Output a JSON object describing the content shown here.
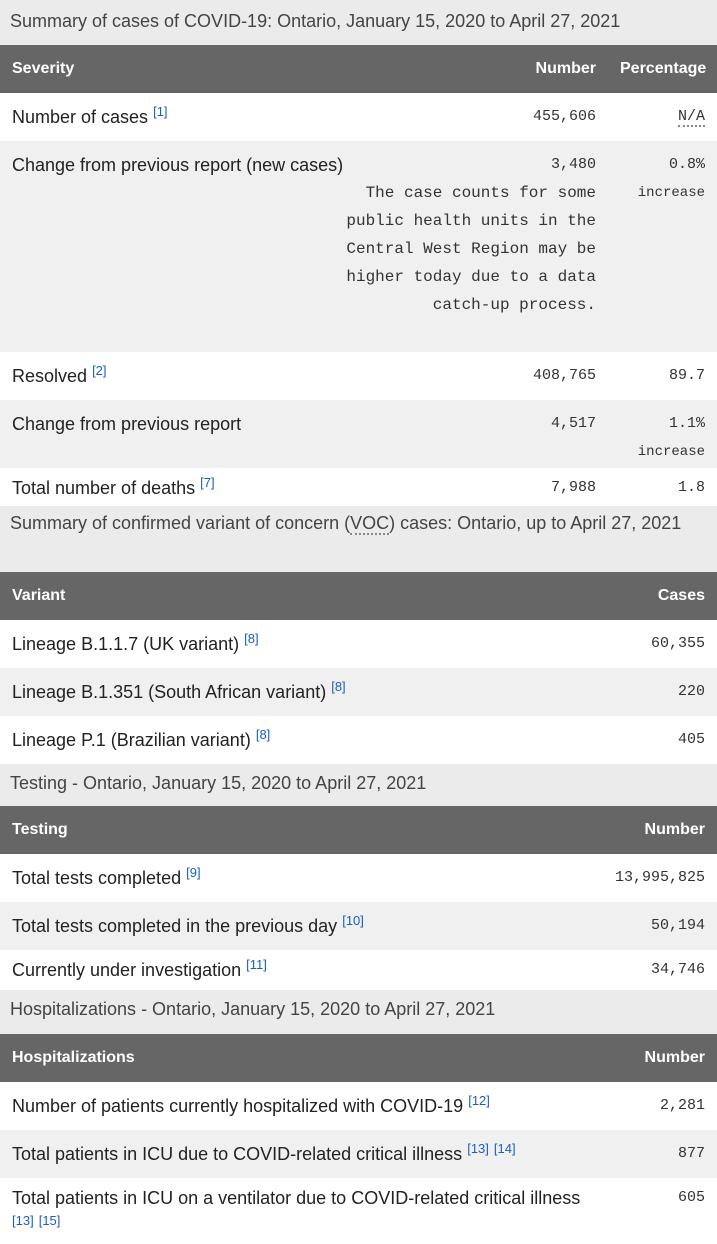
{
  "summary": {
    "caption": "Summary of cases of COVID-19: Ontario, January 15, 2020 to April 27, 2021",
    "headers": {
      "severity": "Severity",
      "number": "Number",
      "percentage": "Percentage"
    },
    "rows": {
      "cases": {
        "label": "Number of cases",
        "ref": "[1]",
        "number": "455,606",
        "percentage": "N/A"
      },
      "change": {
        "label": "Change from previous report (new cases)",
        "number": "3,480",
        "note": "The case counts for some public health units in the Central West Region may be higher today due to a data catch-up process.",
        "percentage": "0.8%",
        "percentage_sub": "increase"
      },
      "resolved": {
        "label": "Resolved",
        "ref": "[2]",
        "number": "408,765",
        "percentage": "89.7"
      },
      "resolved_change": {
        "label": "Change from previous report",
        "number": "4,517",
        "percentage": "1.1%",
        "percentage_sub": "increase"
      },
      "deaths": {
        "label": "Total number of deaths",
        "ref": "[7]",
        "number": "7,988",
        "percentage": "1.8"
      }
    }
  },
  "variants": {
    "caption_before": "Summary of confirmed variant of concern (",
    "caption_abbr": "VOC",
    "caption_after": ") cases: Ontario, up to April 27, 2021",
    "headers": {
      "variant": "Variant",
      "cases": "Cases"
    },
    "rows": [
      {
        "label": "Lineage B.1.1.7 (UK variant)",
        "ref": "[8]",
        "value": "60,355"
      },
      {
        "label": "Lineage B.1.351 (South African variant)",
        "ref": "[8]",
        "value": "220"
      },
      {
        "label": "Lineage P.1 (Brazilian variant)",
        "ref": "[8]",
        "value": "405"
      }
    ]
  },
  "testing": {
    "caption": "Testing - Ontario, January 15, 2020 to April 27, 2021",
    "headers": {
      "testing": "Testing",
      "number": "Number"
    },
    "rows": [
      {
        "label": "Total tests completed",
        "ref": "[9]",
        "value": "13,995,825"
      },
      {
        "label": "Total tests completed in the previous day",
        "ref": "[10]",
        "value": "50,194"
      },
      {
        "label": "Currently under investigation",
        "ref": "[11]",
        "value": "34,746"
      }
    ]
  },
  "hospital": {
    "caption": "Hospitalizations - Ontario, January 15, 2020 to April 27, 2021",
    "headers": {
      "hospitalizations": "Hospitalizations",
      "number": "Number"
    },
    "rows": [
      {
        "label": "Number of patients currently hospitalized with COVID-19",
        "ref1": "[12]",
        "value": "2,281"
      },
      {
        "label": "Total patients in ICU due to COVID-related critical illness",
        "ref1": "[13]",
        "ref2": "[14]",
        "value": "877"
      },
      {
        "label": "Total patients in ICU on a ventilator due to COVID-related critical illness",
        "ref1": "[13]",
        "ref2": "[15]",
        "value": "605"
      }
    ]
  }
}
